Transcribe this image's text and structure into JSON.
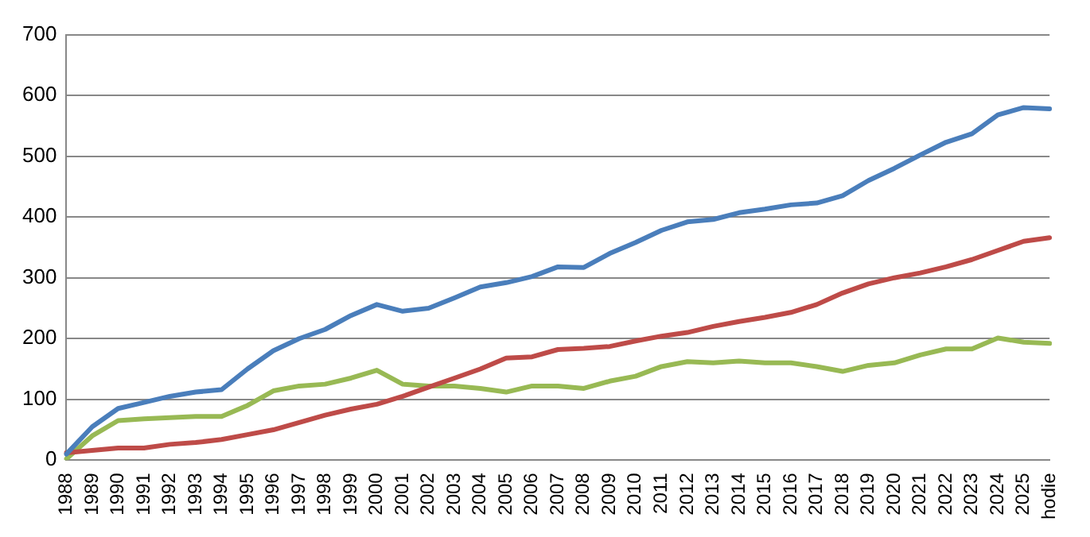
{
  "chart_data": {
    "type": "line",
    "categories": [
      "1988",
      "1989",
      "1990",
      "1991",
      "1992",
      "1993",
      "1994",
      "1995",
      "1996",
      "1997",
      "1998",
      "1999",
      "2000",
      "2001",
      "2002",
      "2003",
      "2004",
      "2005",
      "2006",
      "2007",
      "2008",
      "2009",
      "2010",
      "2011",
      "2012",
      "2013",
      "2014",
      "2015",
      "2016",
      "2017",
      "2018",
      "2019",
      "2020",
      "2021",
      "2022",
      "2023",
      "2024",
      "2025",
      "hodie"
    ],
    "series": [
      {
        "color": "#4a7ebb",
        "values": [
          10,
          55,
          85,
          95,
          105,
          112,
          116,
          150,
          180,
          200,
          215,
          238,
          256,
          245,
          250,
          267,
          285,
          292,
          302,
          318,
          317,
          340,
          358,
          378,
          392,
          396,
          407,
          413,
          420,
          423,
          435,
          460,
          480,
          502,
          523,
          537,
          568,
          580,
          578
        ]
      },
      {
        "color": "#be4b48",
        "values": [
          12,
          16,
          20,
          20,
          26,
          29,
          34,
          42,
          50,
          62,
          74,
          84,
          92,
          105,
          120,
          135,
          150,
          168,
          170,
          182,
          184,
          187,
          196,
          204,
          210,
          220,
          228,
          235,
          243,
          256,
          275,
          290,
          300,
          308,
          318,
          330,
          345,
          360,
          366
        ]
      },
      {
        "color": "#98b954",
        "values": [
          2,
          40,
          65,
          68,
          70,
          72,
          72,
          90,
          114,
          122,
          125,
          135,
          148,
          125,
          122,
          122,
          118,
          112,
          122,
          122,
          118,
          130,
          138,
          154,
          162,
          160,
          163,
          160,
          160,
          154,
          146,
          156,
          160,
          173,
          183,
          183,
          201,
          194,
          192
        ]
      }
    ],
    "ylim": [
      0,
      700
    ],
    "yticks": [
      0,
      100,
      200,
      300,
      400,
      500,
      600,
      700
    ],
    "grid": "y",
    "legend": false,
    "marker": "none",
    "line_style": "solid"
  }
}
